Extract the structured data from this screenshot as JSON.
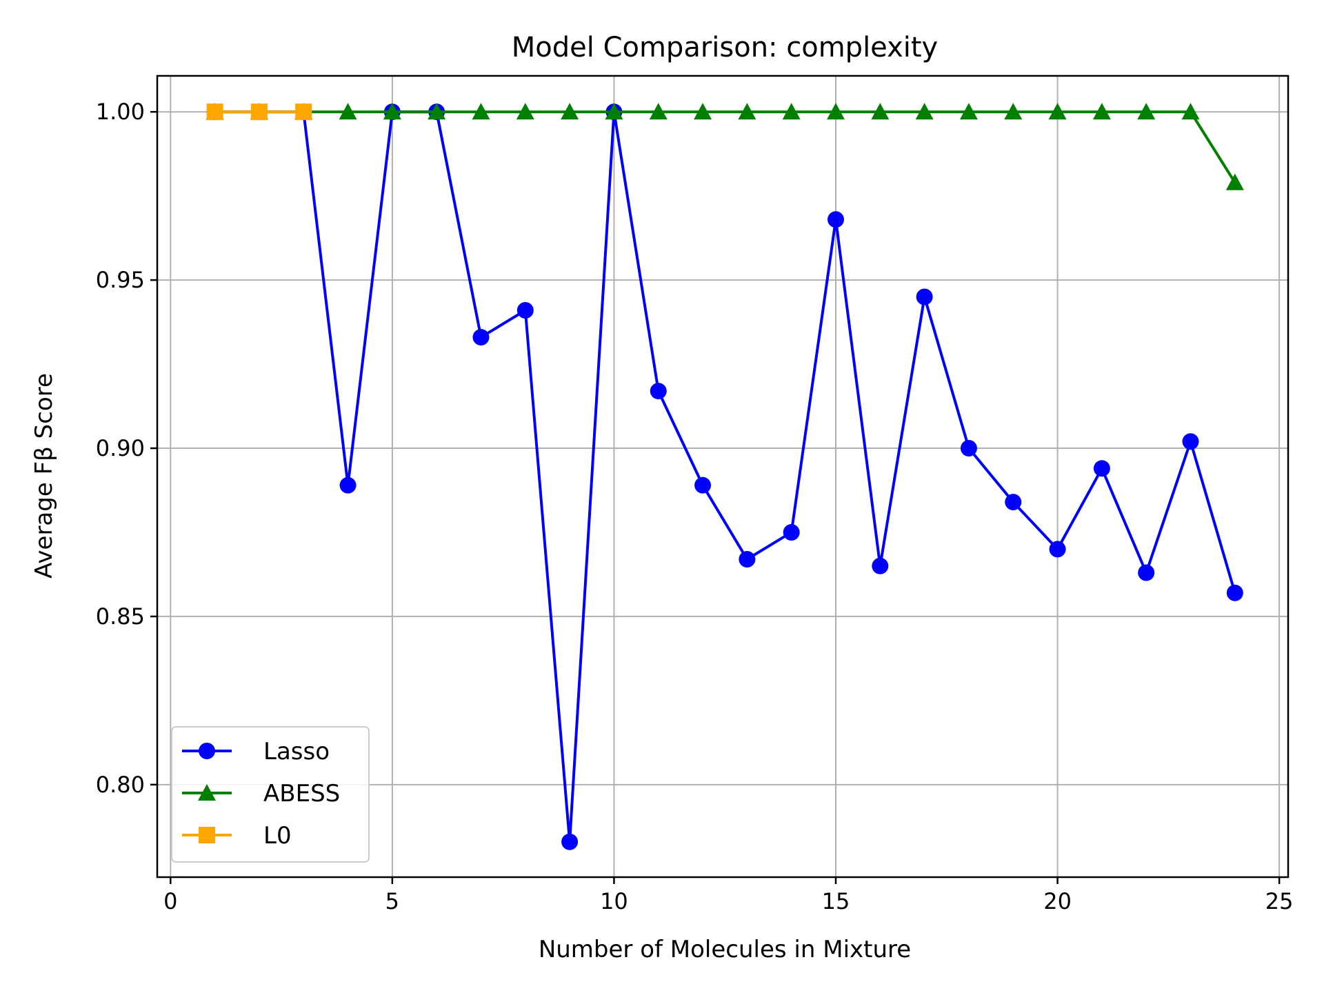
{
  "chart_data": {
    "type": "line",
    "title": "Model Comparison: complexity",
    "xlabel": "Number of Molecules in Mixture",
    "ylabel": "Average Fβ Score",
    "xlim": [
      -0.3,
      25.2
    ],
    "ylim": [
      0.7725,
      1.0107
    ],
    "xticks": [
      0,
      5,
      10,
      15,
      20,
      25
    ],
    "xtick_labels": [
      "0",
      "5",
      "10",
      "15",
      "20",
      "25"
    ],
    "yticks": [
      0.8,
      0.85,
      0.9,
      0.95,
      1.0
    ],
    "ytick_labels": [
      "0.80",
      "0.85",
      "0.90",
      "0.95",
      "1.00"
    ],
    "grid": true,
    "legend_position": "lower-left",
    "series": [
      {
        "name": "Lasso",
        "color": "#0000ff",
        "marker": "circle",
        "x": [
          1,
          2,
          3,
          4,
          5,
          6,
          7,
          8,
          9,
          10,
          11,
          12,
          13,
          14,
          15,
          16,
          17,
          18,
          19,
          20,
          21,
          22,
          23,
          24
        ],
        "y": [
          1.0,
          1.0,
          1.0,
          0.889,
          1.0,
          1.0,
          0.933,
          0.941,
          0.783,
          1.0,
          0.917,
          0.889,
          0.867,
          0.875,
          0.968,
          0.865,
          0.945,
          0.9,
          0.884,
          0.87,
          0.894,
          0.863,
          0.902,
          0.857
        ]
      },
      {
        "name": "ABESS",
        "color": "#008000",
        "marker": "triangle",
        "x": [
          1,
          2,
          3,
          4,
          5,
          6,
          7,
          8,
          9,
          10,
          11,
          12,
          13,
          14,
          15,
          16,
          17,
          18,
          19,
          20,
          21,
          22,
          23,
          24
        ],
        "y": [
          1,
          1,
          1,
          1,
          1,
          1,
          1,
          1,
          1,
          1,
          1,
          1,
          1,
          1,
          1,
          1,
          1,
          1,
          1,
          1,
          1,
          1,
          1,
          0.979
        ]
      },
      {
        "name": "L0",
        "color": "#ffa500",
        "marker": "square",
        "x": [
          1,
          2,
          3
        ],
        "y": [
          1,
          1,
          1
        ]
      }
    ]
  }
}
